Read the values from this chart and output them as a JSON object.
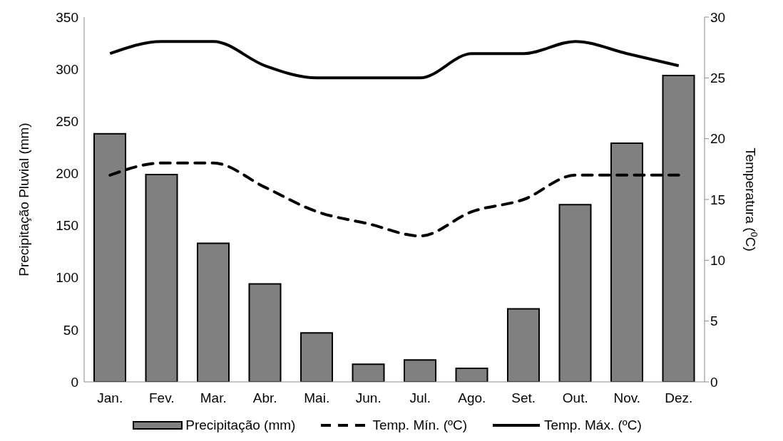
{
  "chart_data": {
    "type": "bar",
    "ylabel": "Precipitação Pluvial (mm)",
    "y2label": "Temperatura ($^{0}$C)",
    "categories": [
      "Jan.",
      "Fev.",
      "Mar.",
      "Abr.",
      "Mai.",
      "Jun.",
      "Jul.",
      "Ago.",
      "Set.",
      "Out.",
      "Nov.",
      "Dez."
    ],
    "series": [
      {
        "name": "Precipitação (mm)",
        "type": "bar",
        "color": "#808080",
        "values": [
          238,
          199,
          133,
          94,
          47,
          17,
          21,
          13,
          70,
          170,
          229,
          294
        ]
      },
      {
        "name": "Temp. Mín. (ºC)",
        "type": "line",
        "axis": "y2",
        "color": "#000000",
        "line_style": "dashed",
        "values": [
          17,
          18,
          18,
          16,
          14,
          13,
          12,
          14,
          15,
          17,
          17,
          17
        ]
      },
      {
        "name": "Temp. Máx. (ºC)",
        "type": "line",
        "axis": "y2",
        "color": "#000000",
        "line_style": "solid",
        "values": [
          27,
          28,
          28,
          26,
          25,
          25,
          25,
          27,
          27,
          28,
          27,
          26
        ]
      }
    ],
    "ylim": [
      0,
      350
    ],
    "yticks": [
      0,
      50,
      100,
      150,
      200,
      250,
      300,
      350
    ],
    "y2lim": [
      0,
      30
    ],
    "y2ticks": [
      0,
      5,
      10,
      15,
      20,
      25,
      30
    ],
    "grid": false,
    "legend": "bottom",
    "marker": "none"
  }
}
